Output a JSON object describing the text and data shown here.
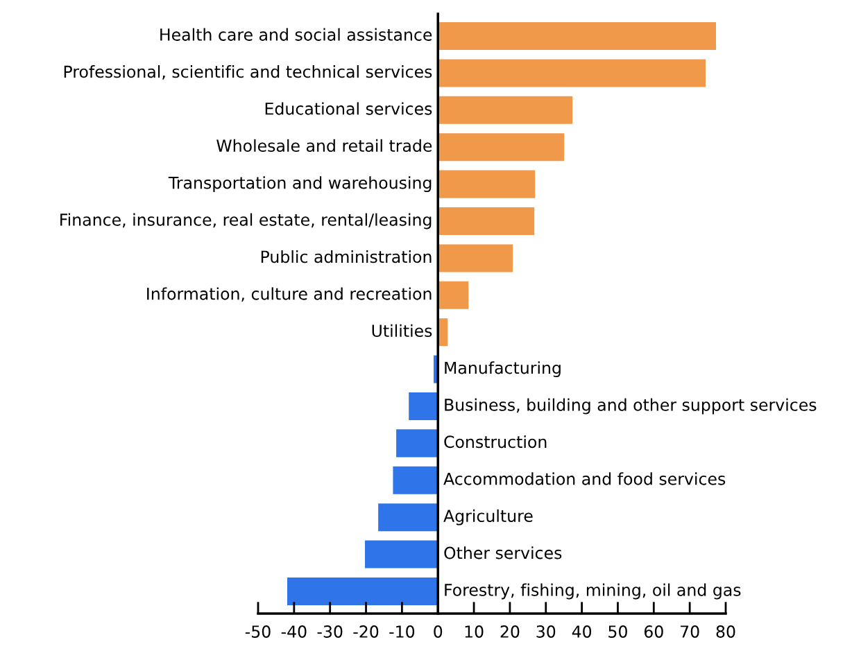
{
  "chart_data": {
    "type": "bar",
    "orientation": "horizontal",
    "categories": [
      "Health care and social assistance",
      "Professional, scientific and technical services",
      "Educational services",
      "Wholesale and retail trade",
      "Transportation and warehousing",
      "Finance, insurance, real estate, rental/leasing",
      "Public administration",
      "Information, culture and recreation",
      "Utilities",
      "Manufacturing",
      "Business, building and other support services",
      "Construction",
      "Accommodation and food services",
      "Agriculture",
      "Other services",
      "Forestry, fishing, mining, oil and gas"
    ],
    "values": [
      77.3,
      74.4,
      37.4,
      35.1,
      27.0,
      26.8,
      20.8,
      8.5,
      2.7,
      -1.2,
      -8.1,
      -11.6,
      -12.5,
      -16.6,
      -20.3,
      -41.9
    ],
    "colors": [
      "#f0994a",
      "#f0994a",
      "#f0994a",
      "#f0994a",
      "#f0994a",
      "#f0994a",
      "#f0994a",
      "#f0994a",
      "#f0994a",
      "#2f74e8",
      "#2f74e8",
      "#2f74e8",
      "#2f74e8",
      "#2f74e8",
      "#2f74e8",
      "#2f74e8"
    ],
    "xlim": [
      -50,
      80
    ],
    "xticks": [
      -50,
      -40,
      -30,
      -20,
      -10,
      0,
      10,
      20,
      30,
      40,
      50,
      60,
      70,
      80
    ],
    "grid": false,
    "legend": false
  }
}
